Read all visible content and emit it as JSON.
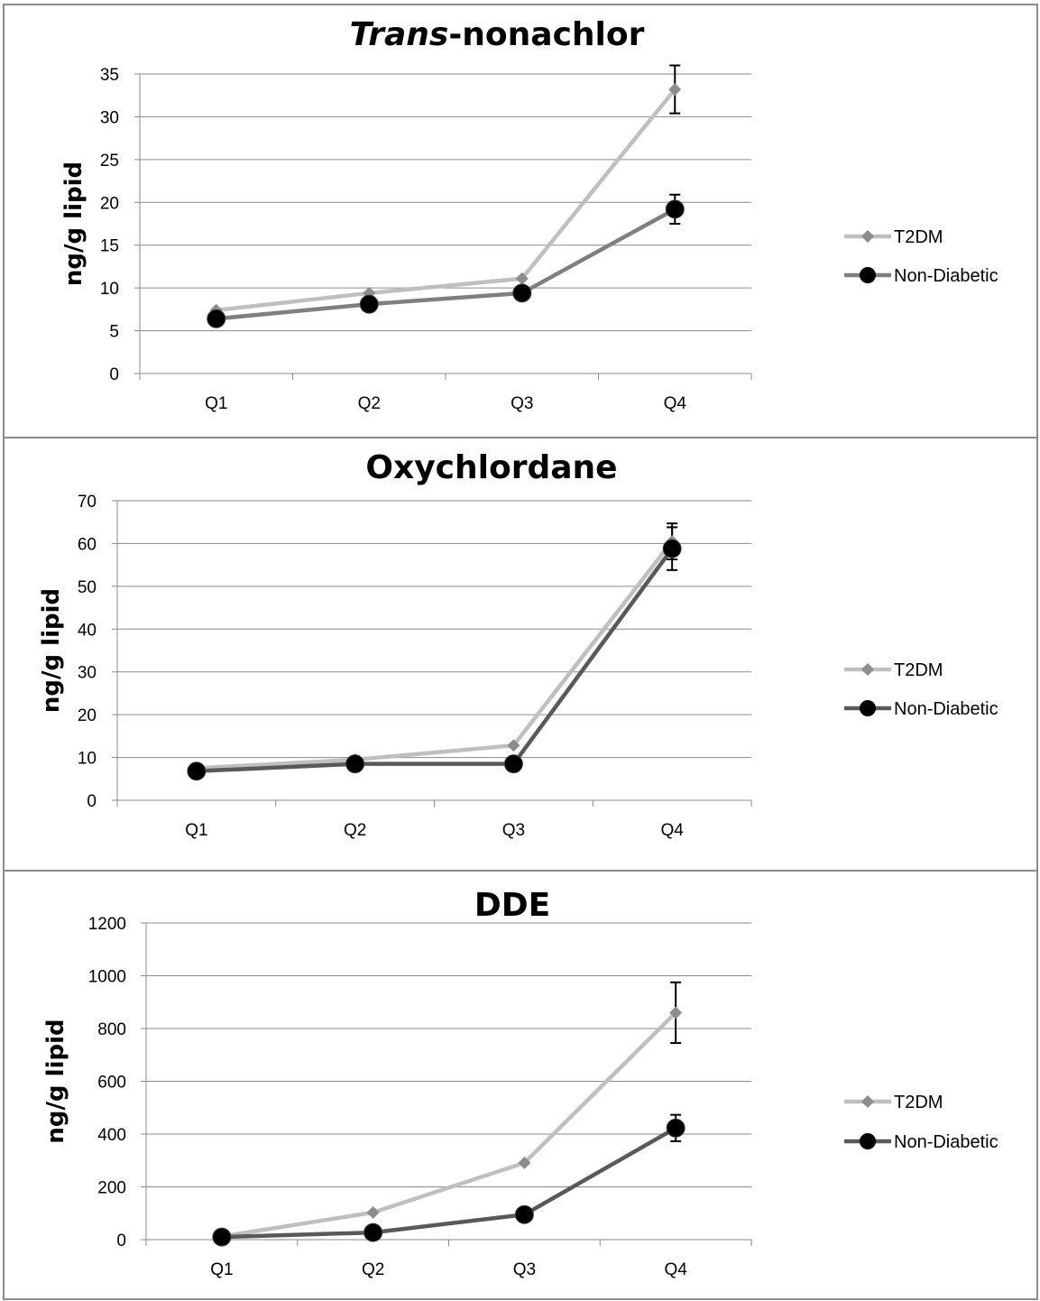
{
  "chart_data": [
    {
      "type": "line",
      "title": "Trans-nonachlor",
      "title_italic_part": "Trans",
      "title_rest": "-nonachlor",
      "ylabel": "ng/g lipid",
      "categories": [
        "Q1",
        "Q2",
        "Q3",
        "Q4"
      ],
      "ylim": [
        0,
        35
      ],
      "yticks": [
        0,
        5,
        10,
        15,
        20,
        25,
        30,
        35
      ],
      "grid": true,
      "legend_position": "right",
      "series": [
        {
          "name": "T2DM",
          "values": [
            7.4,
            9.4,
            11.1,
            33.2
          ],
          "error": [
            null,
            null,
            null,
            2.8
          ],
          "color": "#bfbfbf",
          "marker_color": "#8c8c8c",
          "marker": "diamond"
        },
        {
          "name": "Non-Diabetic",
          "values": [
            6.4,
            8.1,
            9.4,
            19.2
          ],
          "error": [
            null,
            null,
            null,
            1.7
          ],
          "color": "#7f7f7f",
          "marker_color": "#000000",
          "marker": "circle"
        }
      ]
    },
    {
      "type": "line",
      "title": "Oxychlordane",
      "ylabel": "ng/g lipid",
      "categories": [
        "Q1",
        "Q2",
        "Q3",
        "Q4"
      ],
      "ylim": [
        0,
        70
      ],
      "yticks": [
        0,
        10,
        20,
        30,
        40,
        50,
        60,
        70
      ],
      "grid": true,
      "legend_position": "right",
      "series": [
        {
          "name": "T2DM",
          "values": [
            7.5,
            9.5,
            12.8,
            60.5
          ],
          "error": [
            null,
            null,
            null,
            4.2
          ],
          "color": "#bfbfbf",
          "marker_color": "#8c8c8c",
          "marker": "diamond"
        },
        {
          "name": "Non-Diabetic",
          "values": [
            6.8,
            8.5,
            8.5,
            58.8
          ],
          "error": [
            null,
            null,
            null,
            5.0
          ],
          "color": "#595959",
          "marker_color": "#000000",
          "marker": "circle"
        }
      ]
    },
    {
      "type": "line",
      "title": "DDE",
      "ylabel": "ng/g lipid",
      "categories": [
        "Q1",
        "Q2",
        "Q3",
        "Q4"
      ],
      "ylim": [
        0,
        1200
      ],
      "yticks": [
        0,
        200,
        400,
        600,
        800,
        1000,
        1200
      ],
      "grid": true,
      "legend_position": "right",
      "series": [
        {
          "name": "T2DM",
          "values": [
            12,
            103,
            291,
            860
          ],
          "error": [
            null,
            null,
            null,
            115
          ],
          "color": "#bfbfbf",
          "marker_color": "#8c8c8c",
          "marker": "diamond"
        },
        {
          "name": "Non-Diabetic",
          "values": [
            10,
            27,
            95,
            423
          ],
          "error": [
            null,
            null,
            null,
            50
          ],
          "color": "#595959",
          "marker_color": "#000000",
          "marker": "circle"
        }
      ]
    }
  ]
}
